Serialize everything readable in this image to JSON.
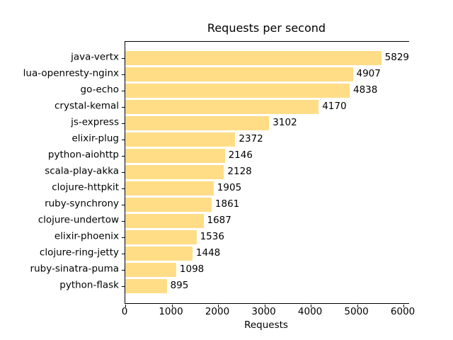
{
  "chart_data": {
    "type": "bar",
    "orientation": "horizontal",
    "title": "Requests per second",
    "xlabel": "Requests",
    "ylabel": "",
    "categories": [
      "java-vertx",
      "lua-openresty-nginx",
      "go-echo",
      "crystal-kemal",
      "js-express",
      "elixir-plug",
      "python-aiohttp",
      "scala-play-akka",
      "clojure-httpkit",
      "ruby-synchrony",
      "clojure-undertow",
      "elixir-phoenix",
      "clojure-ring-jetty",
      "ruby-sinatra-puma",
      "python-flask"
    ],
    "values": [
      5829,
      4907,
      4838,
      4170,
      3102,
      2372,
      2146,
      2128,
      1905,
      1861,
      1687,
      1536,
      1448,
      1098,
      895
    ],
    "value_labels_shown": true,
    "xlim": [
      0,
      6120
    ],
    "xticks": [
      0,
      1000,
      2000,
      3000,
      4000,
      5000,
      6000
    ],
    "grid": false,
    "legend": null,
    "bar_color": "#ffdd87",
    "text_color": "#000000",
    "background_color": "#ffffff"
  }
}
